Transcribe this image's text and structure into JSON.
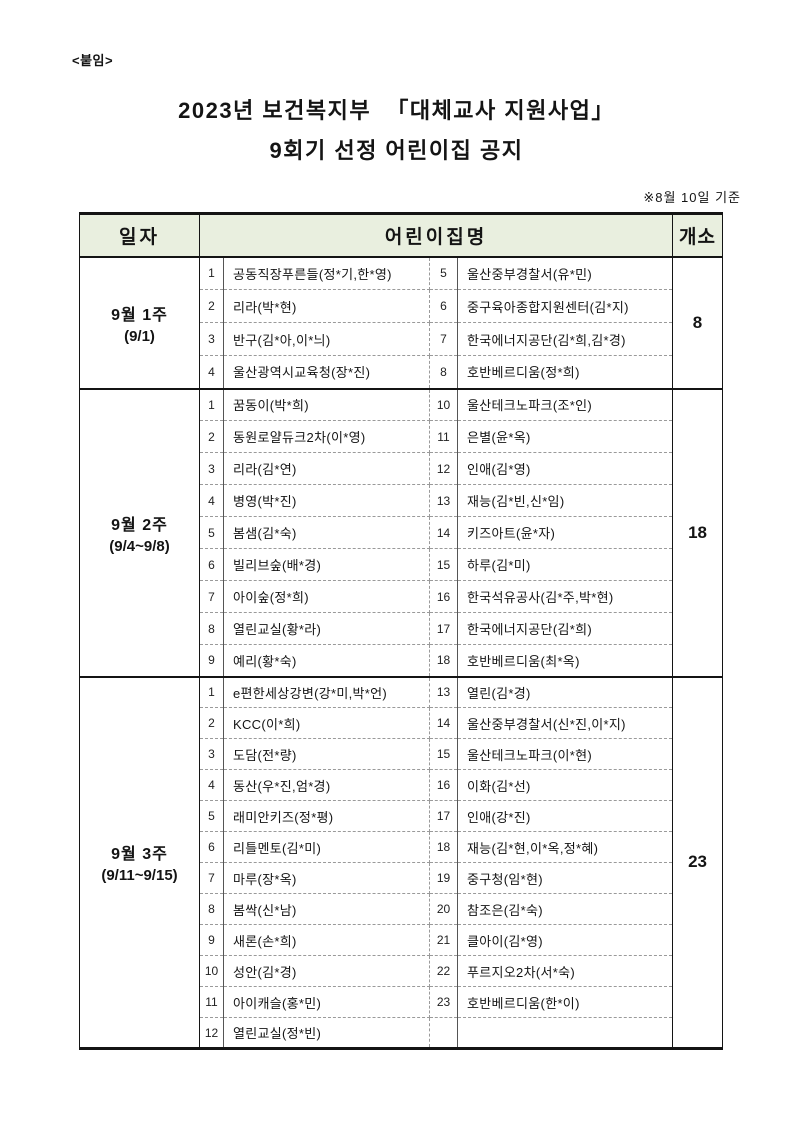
{
  "document": {
    "attachment_label": "<붙임>",
    "title_line1": "2023년 보건복지부  「대체교사 지원사업」",
    "title_line2": "9회기 선정 어린이집 공지",
    "note": "※8월 10일 기준"
  },
  "colors": {
    "header_bg": "#e9efdf",
    "text": "#141414",
    "border_strong": "#141414",
    "border_dashed": "#9a9a9a"
  },
  "table": {
    "headers": {
      "date": "일자",
      "name": "어린이집명",
      "count": "개소"
    },
    "groups": [
      {
        "label": "9월 1주",
        "sublabel": "(9/1)",
        "count": "8",
        "left": [
          {
            "n": "1",
            "name": "공동직장푸른들(정*기,한*영)"
          },
          {
            "n": "2",
            "name": "리라(박*현)"
          },
          {
            "n": "3",
            "name": "반구(김*아,이*늬)"
          },
          {
            "n": "4",
            "name": "울산광역시교육청(장*진)"
          }
        ],
        "right": [
          {
            "n": "5",
            "name": "울산중부경찰서(유*민)"
          },
          {
            "n": "6",
            "name": "중구육아종합지원센터(김*지)"
          },
          {
            "n": "7",
            "name": "한국에너지공단(김*희,김*경)"
          },
          {
            "n": "8",
            "name": "호반베르디움(정*희)"
          }
        ]
      },
      {
        "label": "9월 2주",
        "sublabel": "(9/4~9/8)",
        "count": "18",
        "left": [
          {
            "n": "1",
            "name": "꿈동이(박*희)"
          },
          {
            "n": "2",
            "name": "동원로얄듀크2차(이*영)"
          },
          {
            "n": "3",
            "name": "리라(김*연)"
          },
          {
            "n": "4",
            "name": "병영(박*진)"
          },
          {
            "n": "5",
            "name": "봄샘(김*숙)"
          },
          {
            "n": "6",
            "name": "빌리브숲(배*경)"
          },
          {
            "n": "7",
            "name": "아이숲(정*희)"
          },
          {
            "n": "8",
            "name": "열린교실(황*라)"
          },
          {
            "n": "9",
            "name": "예리(황*숙)"
          }
        ],
        "right": [
          {
            "n": "10",
            "name": "울산테크노파크(조*인)"
          },
          {
            "n": "11",
            "name": "은별(윤*옥)"
          },
          {
            "n": "12",
            "name": "인애(김*영)"
          },
          {
            "n": "13",
            "name": "재능(김*빈,신*임)"
          },
          {
            "n": "14",
            "name": "키즈아트(윤*자)"
          },
          {
            "n": "15",
            "name": "하루(김*미)"
          },
          {
            "n": "16",
            "name": "한국석유공사(김*주,박*현)"
          },
          {
            "n": "17",
            "name": "한국에너지공단(김*희)"
          },
          {
            "n": "18",
            "name": "호반베르디움(최*옥)"
          }
        ]
      },
      {
        "label": "9월 3주",
        "sublabel": "(9/11~9/15)",
        "count": "23",
        "left": [
          {
            "n": "1",
            "name": "e편한세상강변(강*미,박*언)"
          },
          {
            "n": "2",
            "name": "KCC(이*희)"
          },
          {
            "n": "3",
            "name": "도담(전*량)"
          },
          {
            "n": "4",
            "name": "동산(우*진,엄*경)"
          },
          {
            "n": "5",
            "name": "래미안키즈(정*평)"
          },
          {
            "n": "6",
            "name": "리틀멘토(김*미)"
          },
          {
            "n": "7",
            "name": "마루(장*옥)"
          },
          {
            "n": "8",
            "name": "봄싹(신*남)"
          },
          {
            "n": "9",
            "name": "새론(손*희)"
          },
          {
            "n": "10",
            "name": "성안(김*경)"
          },
          {
            "n": "11",
            "name": "아이캐슬(홍*민)"
          },
          {
            "n": "12",
            "name": "열린교실(정*빈)"
          }
        ],
        "right": [
          {
            "n": "13",
            "name": "열린(김*경)"
          },
          {
            "n": "14",
            "name": "울산중부경찰서(신*진,이*지)"
          },
          {
            "n": "15",
            "name": "울산테크노파크(이*현)"
          },
          {
            "n": "16",
            "name": "이화(김*선)"
          },
          {
            "n": "17",
            "name": "인애(강*진)"
          },
          {
            "n": "18",
            "name": "재능(김*현,이*옥,정*혜)"
          },
          {
            "n": "19",
            "name": "중구청(임*현)"
          },
          {
            "n": "20",
            "name": "참조은(김*숙)"
          },
          {
            "n": "21",
            "name": "클아이(김*영)"
          },
          {
            "n": "22",
            "name": "푸르지오2차(서*숙)"
          },
          {
            "n": "23",
            "name": "호반베르디움(한*이)"
          },
          {
            "n": "",
            "name": ""
          }
        ]
      }
    ]
  }
}
